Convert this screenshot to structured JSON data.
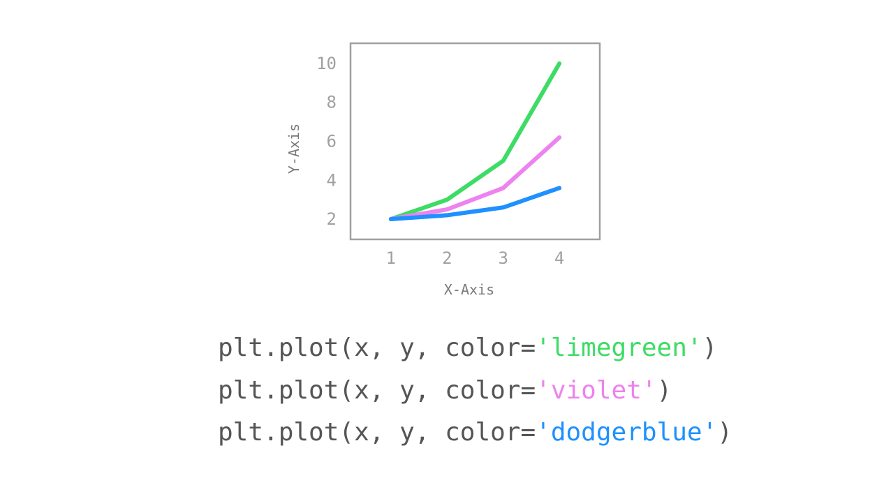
{
  "chart_data": {
    "type": "line",
    "x": [
      1,
      2,
      3,
      4
    ],
    "xlabel": "X-Axis",
    "ylabel": "Y-Axis",
    "xticks": [
      1,
      2,
      3,
      4
    ],
    "yticks": [
      2,
      4,
      6,
      8,
      10
    ],
    "xlim": [
      0.28,
      4.72
    ],
    "ylim": [
      0.96,
      11.04
    ],
    "grid": false,
    "series": [
      {
        "color": "#3ddc64",
        "values": [
          2,
          3,
          5,
          10
        ]
      },
      {
        "color": "#ee82ee",
        "values": [
          2,
          2.5,
          3.6,
          6.2
        ]
      },
      {
        "color": "#1e90ff",
        "values": [
          2,
          2.2,
          2.6,
          3.6
        ]
      }
    ]
  },
  "code": {
    "lines": [
      {
        "prefix": "plt.plot(x, y, color=",
        "arg": "'limegreen'",
        "suffix": ")",
        "color": "#3ddc64"
      },
      {
        "prefix": "plt.plot(x, y, color=",
        "arg": "'violet'",
        "suffix": ")",
        "color": "#ee82ee"
      },
      {
        "prefix": "plt.plot(x, y, color=",
        "arg": "'dodgerblue'",
        "suffix": ")",
        "color": "#1e90ff"
      }
    ]
  }
}
